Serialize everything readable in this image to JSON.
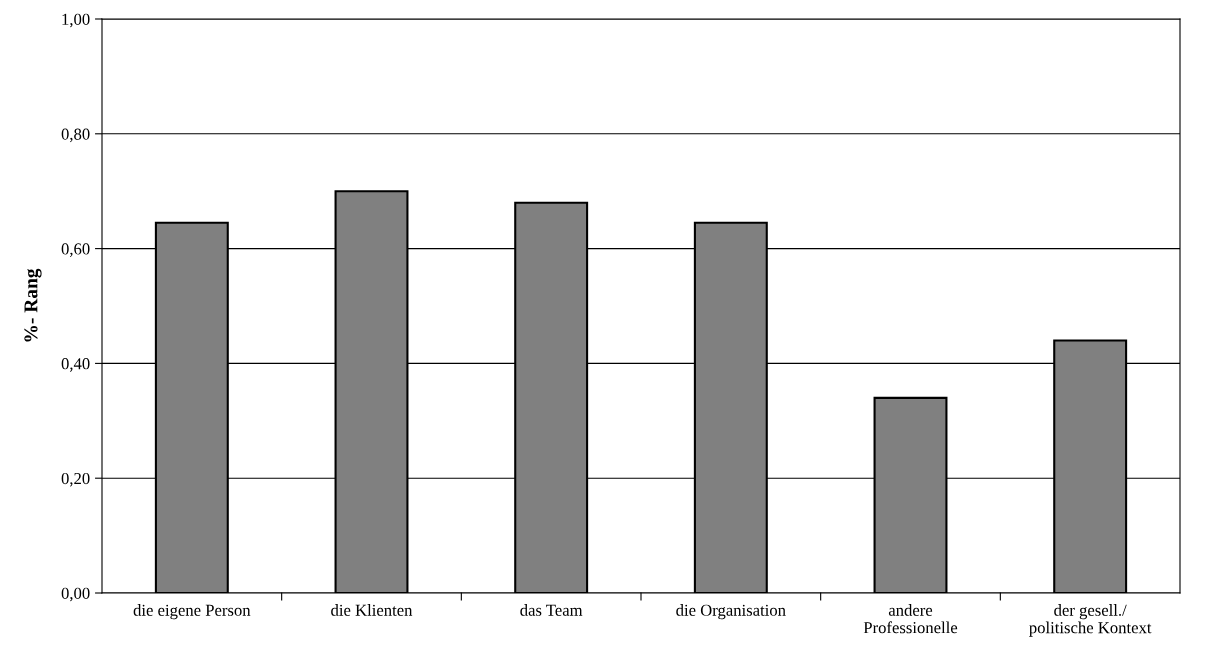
{
  "chart_data": {
    "type": "bar",
    "ylabel": "%- Rang",
    "categories": [
      "die eigene Person",
      "die Klienten",
      "das Team",
      "die Organisation",
      "andere\nProfessionelle",
      "der gesell./\npolitische Kontext"
    ],
    "values": [
      0.645,
      0.7,
      0.68,
      0.645,
      0.34,
      0.44
    ],
    "color": "#808080",
    "ylim": [
      0,
      1
    ],
    "yticks": [
      {
        "value": 0,
        "label": "0,00"
      },
      {
        "value": 0.2,
        "label": "0,20"
      },
      {
        "value": 0.4,
        "label": "0,40"
      },
      {
        "value": 0.6,
        "label": "0,60"
      },
      {
        "value": 0.8,
        "label": "0,80"
      },
      {
        "value": 1,
        "label": "1,00"
      }
    ],
    "grid": "y"
  }
}
